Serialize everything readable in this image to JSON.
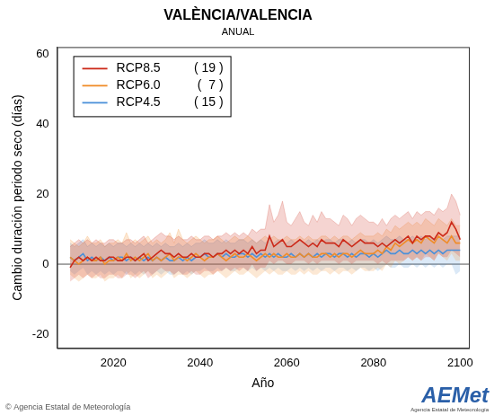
{
  "chart_data": {
    "type": "line",
    "title": "VALÈNCIA/VALENCIA",
    "subtitle": "ANUAL",
    "x_label": "Año",
    "y_label": "Cambio duración periodo seco (días)",
    "credit": "© Agencia Estatal de Meteorología",
    "logo": "AEMet",
    "logo_subtitle": "Agencia Estatal de Meteorología",
    "legend": "top-left",
    "grid": false,
    "hline": 0,
    "xlim": [
      2007,
      2102
    ],
    "xticks": [
      2020,
      2040,
      2060,
      2080,
      2100
    ],
    "ylim": [
      -24,
      62
    ],
    "yticks": [
      -20,
      0,
      20,
      40,
      60
    ],
    "x": [
      2010,
      2011,
      2012,
      2013,
      2014,
      2015,
      2016,
      2017,
      2018,
      2019,
      2020,
      2021,
      2022,
      2023,
      2024,
      2025,
      2026,
      2027,
      2028,
      2029,
      2030,
      2031,
      2032,
      2033,
      2034,
      2035,
      2036,
      2037,
      2038,
      2039,
      2040,
      2041,
      2042,
      2043,
      2044,
      2045,
      2046,
      2047,
      2048,
      2049,
      2050,
      2051,
      2052,
      2053,
      2054,
      2055,
      2056,
      2057,
      2058,
      2059,
      2060,
      2061,
      2062,
      2063,
      2064,
      2065,
      2066,
      2067,
      2068,
      2069,
      2070,
      2071,
      2072,
      2073,
      2074,
      2075,
      2076,
      2077,
      2078,
      2079,
      2080,
      2081,
      2082,
      2083,
      2084,
      2085,
      2086,
      2087,
      2088,
      2089,
      2090,
      2091,
      2092,
      2093,
      2094,
      2095,
      2096,
      2097,
      2098,
      2099,
      2100
    ],
    "series": [
      {
        "name": "RCP8.5",
        "count_label": "( 19 )",
        "color": "#cc2a1a",
        "values": [
          -1,
          1,
          2,
          1,
          2,
          1,
          2,
          1,
          1,
          2,
          2,
          1,
          1,
          2,
          2,
          1,
          2,
          3,
          1,
          2,
          3,
          4,
          3,
          3,
          2,
          3,
          2,
          2,
          3,
          2,
          2,
          3,
          3,
          2,
          3,
          3,
          4,
          3,
          4,
          3,
          4,
          3,
          5,
          3,
          4,
          4,
          8,
          5,
          6,
          7,
          5,
          5,
          6,
          7,
          6,
          5,
          6,
          5,
          7,
          6,
          6,
          6,
          5,
          7,
          6,
          5,
          6,
          7,
          6,
          6,
          6,
          5,
          6,
          5,
          6,
          7,
          6,
          7,
          8,
          6,
          8,
          7,
          8,
          8,
          7,
          9,
          8,
          9,
          12,
          10,
          7
        ],
        "lower": [
          -5,
          -4,
          -3,
          -4,
          -3,
          -4,
          -3,
          -4,
          -4,
          -3,
          -3,
          -4,
          -4,
          -3,
          -3,
          -4,
          -3,
          -2,
          -4,
          -3,
          -2,
          -1,
          -2,
          -2,
          -3,
          -2,
          -3,
          -3,
          -2,
          -3,
          -3,
          -2,
          -2,
          -3,
          -2,
          -2,
          -1,
          -2,
          -1,
          -2,
          -1,
          -2,
          0,
          -2,
          -1,
          -1,
          1,
          0,
          1,
          1,
          0,
          0,
          1,
          1,
          1,
          0,
          1,
          0,
          1,
          1,
          1,
          1,
          0,
          1,
          1,
          0,
          1,
          1,
          1,
          1,
          1,
          0,
          1,
          0,
          1,
          1,
          1,
          1,
          2,
          1,
          2,
          1,
          2,
          2,
          1,
          3,
          2,
          2,
          4,
          3,
          2
        ],
        "upper": [
          5,
          6,
          7,
          6,
          7,
          6,
          7,
          6,
          6,
          7,
          7,
          6,
          6,
          7,
          7,
          6,
          7,
          8,
          6,
          7,
          8,
          9,
          8,
          8,
          7,
          8,
          7,
          7,
          8,
          7,
          7,
          8,
          8,
          7,
          8,
          8,
          9,
          8,
          9,
          8,
          9,
          8,
          10,
          9,
          10,
          10,
          17,
          12,
          14,
          18,
          12,
          11,
          13,
          15,
          12,
          11,
          14,
          12,
          15,
          13,
          13,
          12,
          11,
          14,
          13,
          11,
          13,
          14,
          13,
          12,
          12,
          11,
          13,
          11,
          13,
          14,
          13,
          14,
          15,
          13,
          15,
          14,
          15,
          15,
          14,
          16,
          15,
          16,
          20,
          18,
          14
        ]
      },
      {
        "name": "RCP6.0",
        "count_label": "(  7 )",
        "color": "#f08c28",
        "values": [
          2,
          1,
          0,
          1,
          2,
          1,
          1,
          2,
          0,
          1,
          1,
          2,
          1,
          3,
          1,
          2,
          1,
          2,
          3,
          1,
          2,
          1,
          2,
          3,
          1,
          2,
          2,
          1,
          2,
          3,
          2,
          1,
          2,
          2,
          3,
          2,
          1,
          2,
          3,
          2,
          2,
          3,
          2,
          1,
          2,
          3,
          2,
          3,
          2,
          2,
          3,
          2,
          2,
          3,
          2,
          3,
          2,
          2,
          3,
          3,
          2,
          3,
          2,
          3,
          3,
          2,
          3,
          4,
          3,
          3,
          3,
          4,
          3,
          5,
          4,
          6,
          5,
          6,
          7,
          6,
          7,
          6,
          8,
          7,
          6,
          8,
          7,
          6,
          8,
          6,
          6
        ],
        "lower": [
          -3,
          -4,
          -5,
          -4,
          -3,
          -4,
          -4,
          -3,
          -5,
          -4,
          -4,
          -3,
          -4,
          -2,
          -4,
          -3,
          -4,
          -3,
          -2,
          -4,
          -3,
          -4,
          -3,
          -2,
          -4,
          -3,
          -3,
          -4,
          -3,
          -2,
          -3,
          -4,
          -3,
          -3,
          -2,
          -3,
          -4,
          -3,
          -2,
          -3,
          -3,
          -2,
          -3,
          -4,
          -3,
          -2,
          -3,
          -2,
          -3,
          -3,
          -2,
          -3,
          -3,
          -2,
          -3,
          -2,
          -3,
          -3,
          -2,
          -2,
          -3,
          -2,
          -3,
          -2,
          -2,
          -3,
          -2,
          -1,
          -2,
          -2,
          -2,
          -1,
          -2,
          0,
          -1,
          1,
          0,
          1,
          2,
          1,
          2,
          1,
          3,
          2,
          1,
          3,
          2,
          1,
          3,
          1,
          1
        ],
        "upper": [
          7,
          6,
          5,
          6,
          8,
          6,
          6,
          7,
          5,
          6,
          6,
          7,
          6,
          9,
          6,
          7,
          6,
          7,
          8,
          6,
          7,
          6,
          7,
          9,
          6,
          10,
          7,
          6,
          7,
          8,
          7,
          6,
          7,
          7,
          8,
          7,
          6,
          7,
          8,
          7,
          7,
          8,
          7,
          6,
          7,
          8,
          7,
          8,
          7,
          7,
          8,
          7,
          7,
          8,
          7,
          8,
          7,
          7,
          8,
          8,
          7,
          8,
          7,
          8,
          8,
          7,
          8,
          9,
          8,
          8,
          8,
          9,
          8,
          10,
          9,
          11,
          10,
          11,
          12,
          11,
          12,
          11,
          13,
          12,
          11,
          13,
          12,
          11,
          13,
          11,
          11
        ]
      },
      {
        "name": "RCP4.5",
        "count_label": "( 15 )",
        "color": "#4a90d9",
        "values": [
          2,
          1,
          2,
          3,
          1,
          2,
          1,
          2,
          1,
          2,
          1,
          2,
          2,
          1,
          2,
          1,
          2,
          1,
          2,
          1,
          2,
          1,
          2,
          1,
          1,
          2,
          1,
          2,
          1,
          2,
          2,
          3,
          2,
          2,
          3,
          2,
          3,
          2,
          2,
          3,
          3,
          2,
          3,
          2,
          3,
          2,
          3,
          2,
          3,
          2,
          2,
          3,
          2,
          3,
          2,
          3,
          2,
          3,
          2,
          3,
          3,
          2,
          3,
          3,
          2,
          3,
          2,
          3,
          3,
          2,
          3,
          2,
          3,
          4,
          3,
          3,
          4,
          3,
          3,
          4,
          3,
          4,
          3,
          4,
          3,
          4,
          3,
          4,
          4,
          4,
          4
        ],
        "lower": [
          -2,
          -3,
          -2,
          -1,
          -3,
          -2,
          -3,
          -2,
          -3,
          -2,
          -3,
          -2,
          -2,
          -3,
          -2,
          -3,
          -2,
          -3,
          -2,
          -3,
          -2,
          -3,
          -2,
          -3,
          -3,
          -2,
          -3,
          -2,
          -3,
          -2,
          -2,
          -1,
          -2,
          -2,
          -1,
          -2,
          -1,
          -2,
          -2,
          -1,
          -1,
          -2,
          -1,
          -2,
          -1,
          -2,
          -1,
          -2,
          -1,
          -2,
          -2,
          -1,
          -2,
          -1,
          -2,
          -1,
          -2,
          -1,
          -2,
          -1,
          -1,
          -2,
          -1,
          -1,
          -2,
          -1,
          -2,
          -1,
          -1,
          -2,
          -1,
          -2,
          -1,
          0,
          -1,
          -1,
          0,
          -1,
          -1,
          0,
          -1,
          0,
          -1,
          0,
          -1,
          0,
          -1,
          0,
          0,
          -3,
          -2
        ],
        "upper": [
          6,
          5,
          6,
          7,
          5,
          6,
          5,
          6,
          5,
          6,
          5,
          6,
          6,
          5,
          6,
          5,
          6,
          5,
          6,
          5,
          6,
          5,
          6,
          5,
          5,
          6,
          5,
          6,
          5,
          6,
          6,
          7,
          6,
          6,
          7,
          6,
          7,
          6,
          6,
          7,
          7,
          6,
          7,
          6,
          7,
          6,
          7,
          6,
          7,
          6,
          6,
          7,
          6,
          7,
          6,
          7,
          6,
          7,
          6,
          7,
          7,
          6,
          7,
          7,
          6,
          7,
          6,
          7,
          7,
          6,
          7,
          6,
          7,
          8,
          7,
          7,
          8,
          7,
          7,
          8,
          7,
          8,
          7,
          8,
          7,
          8,
          7,
          8,
          8,
          8,
          8
        ]
      }
    ]
  }
}
